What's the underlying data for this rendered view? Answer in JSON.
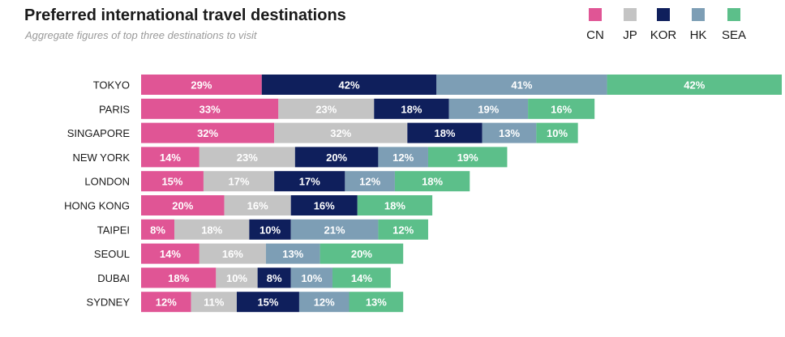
{
  "chart_data": {
    "type": "bar",
    "orientation": "horizontal",
    "stacked": true,
    "title": "Preferred international travel destinations",
    "subtitle": "Aggregate figures of top three destinations to visit",
    "legend_position": "top-right",
    "grid": false,
    "categories": [
      "TOKYO",
      "PARIS",
      "SINGAPORE",
      "NEW YORK",
      "LONDON",
      "HONG KONG",
      "TAIPEI",
      "SEOUL",
      "DUBAI",
      "SYDNEY"
    ],
    "series": [
      {
        "name": "CN",
        "color": "#e05595",
        "values": [
          29,
          33,
          32,
          14,
          15,
          20,
          8,
          14,
          18,
          12
        ]
      },
      {
        "name": "JP",
        "color": "#c4c4c4",
        "values": [
          0,
          23,
          32,
          23,
          17,
          16,
          18,
          16,
          10,
          11
        ]
      },
      {
        "name": "KOR",
        "color": "#0f1f5c",
        "values": [
          42,
          18,
          18,
          20,
          17,
          16,
          10,
          0,
          8,
          15
        ]
      },
      {
        "name": "HK",
        "color": "#7d9eb5",
        "values": [
          41,
          19,
          13,
          12,
          12,
          0,
          21,
          13,
          10,
          12
        ]
      },
      {
        "name": "SEA",
        "color": "#5cbf8a",
        "values": [
          42,
          16,
          10,
          19,
          18,
          18,
          12,
          20,
          14,
          13
        ]
      }
    ],
    "value_suffix": "%"
  }
}
